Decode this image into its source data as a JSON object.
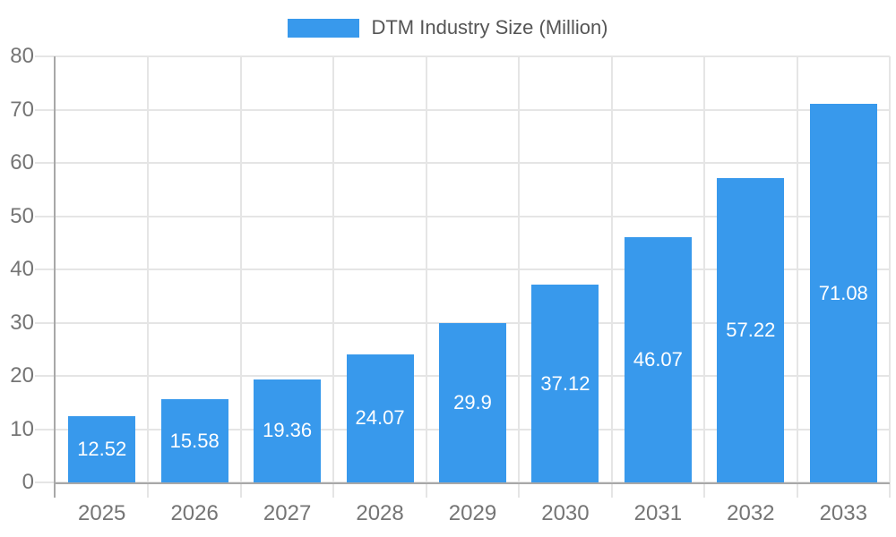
{
  "legend": {
    "label": "DTM Industry Size (Million)",
    "swatch_color": "#3899EC"
  },
  "colors": {
    "bar": "#3899EC",
    "grid": "#E5E5E5",
    "axis": "#A8A8A8",
    "tick_text": "#757575",
    "legend_text": "#555555",
    "value_text": "#FFFFFF",
    "background": "#FFFFFF"
  },
  "chart_data": {
    "type": "bar",
    "title": "",
    "xlabel": "",
    "ylabel": "",
    "series_name": "DTM Industry Size (Million)",
    "categories": [
      "2025",
      "2026",
      "2027",
      "2028",
      "2029",
      "2030",
      "2031",
      "2032",
      "2033"
    ],
    "values": [
      12.52,
      15.58,
      19.36,
      24.07,
      29.9,
      37.12,
      46.07,
      57.22,
      71.08
    ],
    "value_labels": [
      "12.52",
      "15.58",
      "19.36",
      "24.07",
      "29.9",
      "37.12",
      "46.07",
      "57.22",
      "71.08"
    ],
    "ylim": [
      0,
      80
    ],
    "ytick_step": 10,
    "ytick_labels": [
      "0",
      "10",
      "20",
      "30",
      "40",
      "50",
      "60",
      "70",
      "80"
    ],
    "grid": true,
    "legend_position": "top-center",
    "bar_label_position": "center-inside"
  }
}
